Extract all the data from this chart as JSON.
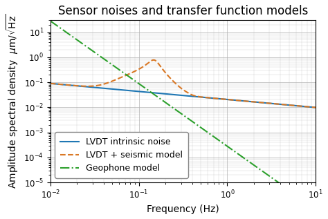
{
  "title": "Sensor noises and transfer function models",
  "xlabel": "Frequency (Hz)",
  "ylabel": "Amplitude spectral density  μm/√Hz",
  "xlim": [
    0.01,
    10
  ],
  "ylim": [
    1e-05,
    30
  ],
  "lvdt_color": "#1f77b4",
  "seismic_color": "#d97825",
  "geophone_color": "#2ca02c",
  "background_color": "#ffffff",
  "grid_color": "#b0b0b0",
  "legend_labels": [
    "LVDT intrinsic noise",
    "LVDT + seismic model",
    "Geophone model"
  ],
  "title_fontsize": 12,
  "axis_fontsize": 10,
  "legend_fontsize": 9,
  "lvdt_f0": 0.01,
  "lvdt_A": 0.09,
  "lvdt_slope": -0.32,
  "geo_A": 28.0,
  "geo_slope": -2.5,
  "seismic_peak_f": 0.15,
  "seismic_peak_height": 0.22,
  "seismic_peak_Q": 3.5,
  "seismic_low_f_A": 0.09,
  "seismic_low_f_slope": -0.32
}
